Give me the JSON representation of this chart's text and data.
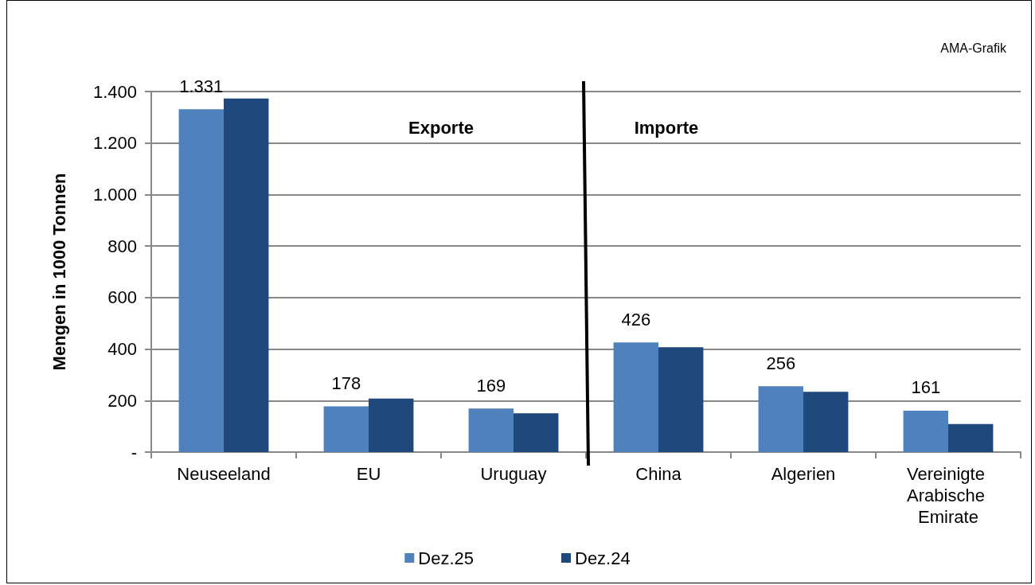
{
  "chart_data": {
    "type": "bar",
    "ylabel": "Mengen in 1000 Tonnen",
    "annotations": [
      "AMA-Grafik",
      "Exporte",
      "Importe"
    ],
    "categories": [
      "Neuseeland",
      "EU",
      "Uruguay",
      "China",
      "Algerien",
      "Vereinigte Arabische Emirate"
    ],
    "series": [
      {
        "name": "Dez.25",
        "color": "#4f81bd",
        "values": [
          1331,
          178,
          169,
          426,
          256,
          161
        ],
        "value_labels": [
          "1.331",
          "178",
          "169",
          "426",
          "256",
          "161"
        ]
      },
      {
        "name": "Dez.24",
        "color": "#1f497d",
        "values": [
          1373,
          208,
          151,
          407,
          234,
          109
        ]
      }
    ],
    "ylim": [
      0,
      1400
    ],
    "yticks": [
      {
        "value": 0,
        "label": "-"
      },
      {
        "value": 200,
        "label": "200"
      },
      {
        "value": 400,
        "label": "400"
      },
      {
        "value": 600,
        "label": "600"
      },
      {
        "value": 800,
        "label": "800"
      },
      {
        "value": 1000,
        "label": "1.000"
      },
      {
        "value": 1200,
        "label": "1.200"
      },
      {
        "value": 1400,
        "label": "1.400"
      }
    ],
    "grid": "y",
    "legend": "bottom"
  }
}
